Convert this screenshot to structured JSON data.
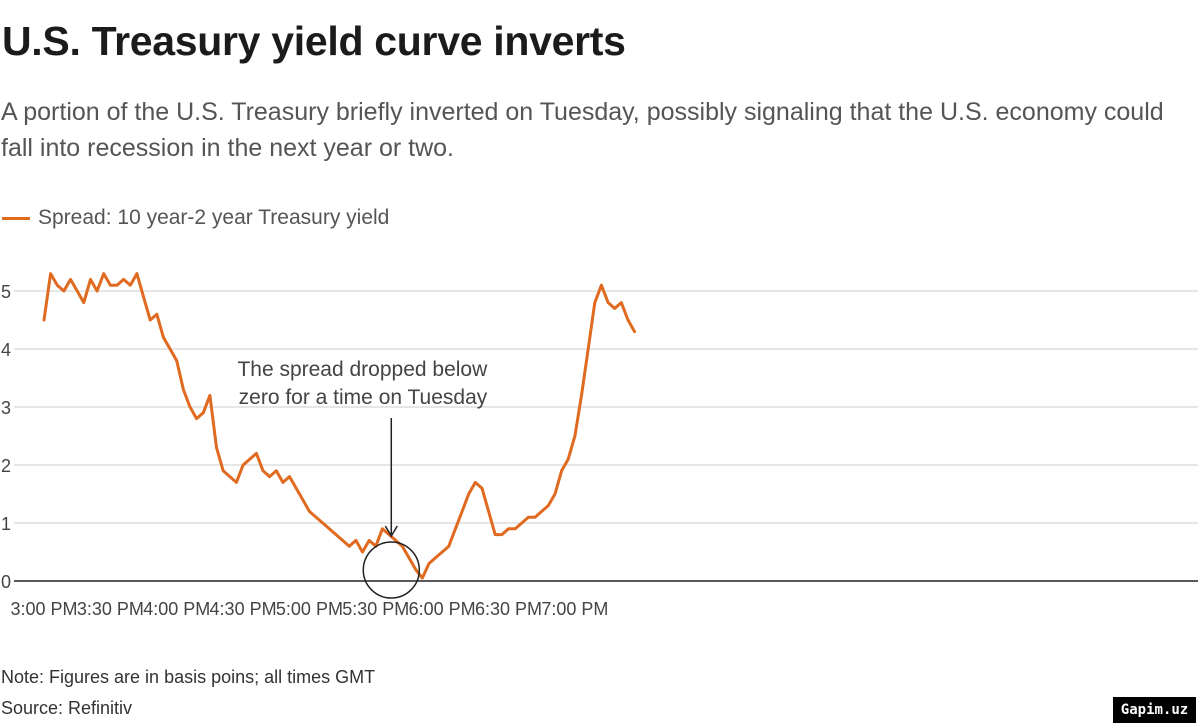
{
  "header": {
    "title": "U.S. Treasury yield curve inverts",
    "subtitle": "A portion of the U.S. Treasury briefly inverted on Tuesday, possibly signaling that the U.S. economy could fall into recession in the next year or two."
  },
  "footer": {
    "note": "Note: Figures are in basis poins; all times GMT",
    "source": "Source: Refinitiv",
    "watermark": "Gapim.uz"
  },
  "colors": {
    "series": "#e06a1f",
    "gridline": "#cccccc",
    "baseline": "#222222"
  },
  "chart_data": {
    "type": "line",
    "title": "U.S. Treasury yield curve inverts",
    "xlabel": "",
    "ylabel": "",
    "x_unit": "minutes after 3:00 PM GMT",
    "xlim": [
      0,
      270
    ],
    "ylim": [
      0,
      5.5
    ],
    "y_ticks": [
      "0",
      "1",
      "2",
      "3",
      "4",
      "5"
    ],
    "x_ticks": [
      "3:00 PM",
      "3:30 PM",
      "4:00 PM",
      "4:30 PM",
      "5:00 PM",
      "5:30 PM",
      "6:00 PM",
      "6:30 PM",
      "7:00 PM"
    ],
    "grid": true,
    "legend_position": "top-left",
    "series": [
      {
        "name": "Spread: 10 year-2 year Treasury yield",
        "x": [
          0,
          3,
          6,
          9,
          12,
          15,
          18,
          21,
          24,
          27,
          30,
          33,
          36,
          39,
          42,
          45,
          48,
          51,
          54,
          57,
          60,
          63,
          66,
          69,
          72,
          75,
          78,
          81,
          84,
          87,
          90,
          93,
          96,
          99,
          102,
          105,
          108,
          111,
          114,
          117,
          120,
          123,
          126,
          129,
          132,
          135,
          138,
          141,
          144,
          147,
          150,
          153,
          156,
          159,
          162,
          165,
          168,
          171,
          174,
          177,
          180,
          183,
          186,
          189,
          192,
          195,
          198,
          201,
          204,
          207,
          210,
          213,
          216,
          219,
          222,
          225,
          228,
          231,
          234,
          237,
          240,
          243,
          246,
          249,
          252,
          255,
          258,
          261,
          264,
          267
        ],
        "values": [
          4.5,
          5.3,
          5.1,
          5.0,
          5.2,
          5.0,
          4.8,
          5.2,
          5.0,
          5.3,
          5.1,
          5.1,
          5.2,
          5.1,
          5.3,
          4.9,
          4.5,
          4.6,
          4.2,
          4.0,
          3.8,
          3.3,
          3.0,
          2.8,
          2.9,
          3.2,
          2.3,
          1.9,
          1.8,
          1.7,
          2.0,
          2.1,
          2.2,
          1.9,
          1.8,
          1.9,
          1.7,
          1.8,
          1.6,
          1.4,
          1.2,
          1.1,
          1.0,
          0.9,
          0.8,
          0.7,
          0.6,
          0.7,
          0.5,
          0.7,
          0.6,
          0.9,
          0.8,
          0.7,
          0.6,
          0.4,
          0.2,
          0.05,
          0.3,
          0.4,
          0.5,
          0.6,
          0.9,
          1.2,
          1.5,
          1.7,
          1.6,
          1.2,
          0.8,
          0.8,
          0.9,
          0.9,
          1.0,
          1.1,
          1.1,
          1.2,
          1.3,
          1.5,
          1.9,
          2.1,
          2.5,
          3.2,
          4.0,
          4.8,
          5.1,
          4.8,
          4.7,
          4.8,
          4.5,
          4.3
        ]
      }
    ],
    "annotations": [
      {
        "text_lines": [
          "The  spread dropped below",
          "zero for a time on Tuesday"
        ],
        "x": 157,
        "y": 0
      }
    ]
  }
}
